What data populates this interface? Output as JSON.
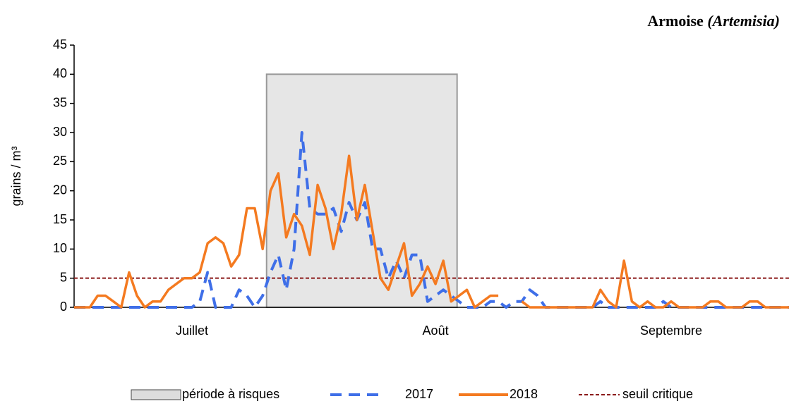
{
  "chart_data": {
    "type": "line",
    "title": "Armoise",
    "title_latin": "(Artemisia)",
    "ylabel": "grains / m³",
    "categories": [
      null,
      null,
      null,
      null,
      null,
      null,
      null,
      null,
      null,
      null,
      null,
      null,
      null,
      null,
      null,
      "Juillet",
      null,
      null,
      null,
      null,
      null,
      null,
      null,
      null,
      null,
      null,
      null,
      null,
      null,
      null,
      null,
      null,
      null,
      null,
      null,
      null,
      null,
      null,
      null,
      null,
      null,
      null,
      null,
      null,
      null,
      null,
      "Août",
      null,
      null,
      null,
      null,
      null,
      null,
      null,
      null,
      null,
      null,
      null,
      null,
      null,
      null,
      null,
      null,
      null,
      null,
      null,
      null,
      null,
      null,
      null,
      null,
      null,
      null,
      null,
      null,
      null,
      "Septembre",
      null,
      null,
      null,
      null,
      null,
      null,
      null,
      null,
      null,
      null,
      null,
      null,
      null,
      null,
      null
    ],
    "series": [
      {
        "name": "2017",
        "color": "#3f6fe8",
        "dash": true,
        "values": [
          0,
          0,
          0,
          0,
          0,
          0,
          0,
          0,
          0,
          0,
          0,
          0,
          0,
          0,
          0,
          0,
          1,
          6,
          0,
          0,
          0,
          3,
          2,
          0,
          2,
          6,
          9,
          3,
          10,
          30,
          17,
          16,
          16,
          17,
          13,
          18,
          15,
          18,
          10,
          10,
          5,
          8,
          5,
          9,
          9,
          1,
          2,
          3,
          2,
          1,
          0,
          0,
          0,
          1,
          1,
          0,
          1,
          1,
          3,
          2,
          0,
          0,
          0,
          0,
          0,
          0,
          0,
          1,
          0,
          0,
          0,
          0,
          0,
          0,
          0,
          1,
          0,
          0,
          0,
          0,
          0,
          0,
          0,
          0,
          0,
          0,
          0,
          0,
          0,
          0,
          0,
          0
        ]
      },
      {
        "name": "2018",
        "color": "#f47a20",
        "dash": false,
        "values": [
          0,
          0,
          0,
          2,
          2,
          1,
          0,
          6,
          2,
          0,
          1,
          1,
          3,
          4,
          5,
          5,
          6,
          11,
          12,
          11,
          7,
          9,
          17,
          17,
          10,
          20,
          23,
          12,
          16,
          14,
          9,
          21,
          17,
          10,
          16,
          26,
          15,
          21,
          13,
          5,
          3,
          7,
          11,
          2,
          4,
          7,
          4,
          8,
          1,
          2,
          3,
          0,
          1,
          2,
          2,
          null,
          null,
          1,
          0,
          0,
          0,
          0,
          0,
          0,
          0,
          0,
          0,
          3,
          1,
          0,
          8,
          1,
          0,
          1,
          0,
          0,
          1,
          0,
          0,
          0,
          0,
          1,
          1,
          0,
          0,
          0,
          1,
          1,
          0,
          0,
          0,
          0
        ]
      }
    ],
    "threshold": {
      "name": "seuil critique",
      "value": 5,
      "color": "#8b1a1a"
    },
    "risk_period": {
      "name": "période à risques",
      "start": 24.5,
      "end": 48.75,
      "top": 40
    },
    "ylim": [
      0,
      45
    ],
    "yticks": [
      0,
      5,
      10,
      15,
      20,
      25,
      30,
      35,
      40,
      45
    ]
  }
}
